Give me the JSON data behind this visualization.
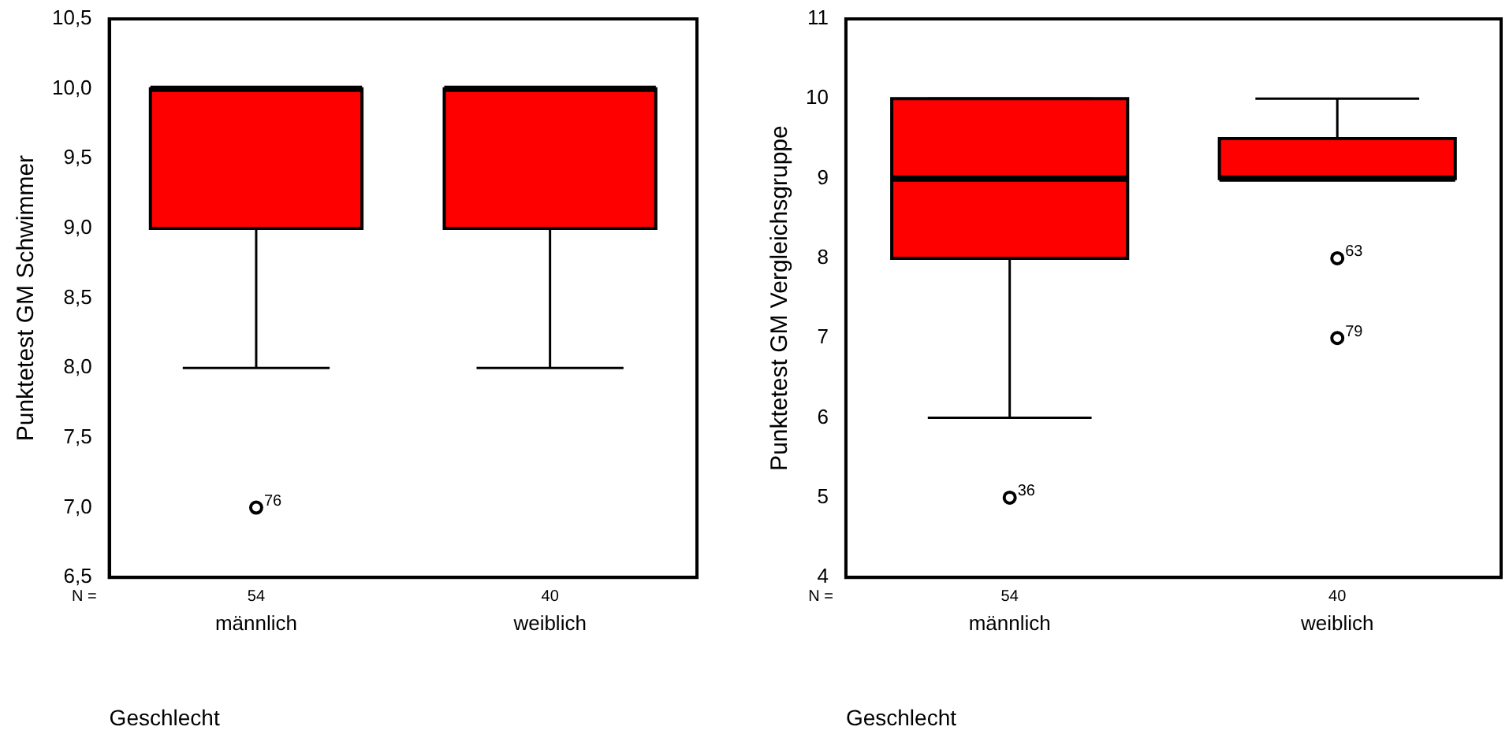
{
  "chart_data": [
    {
      "type": "box",
      "ylabel": "Punktetest GM Schwimmer",
      "xlabel": "Geschlecht",
      "categories": [
        "männlich",
        "weiblich"
      ],
      "series": [
        {
          "color": "#ff0000",
          "boxes": [
            {
              "low": 8,
              "q1": 9,
              "median": 10,
              "q3": 10,
              "high": 10,
              "outliers": [
                7
              ]
            },
            {
              "low": 8,
              "q1": 9,
              "median": 10,
              "q3": 10,
              "high": 10
            }
          ]
        }
      ],
      "ylim": [
        6.5,
        10.5
      ],
      "yticks": [
        {
          "value": 6.5,
          "label": "6,5"
        },
        {
          "value": 7,
          "label": "7,0"
        },
        {
          "value": 7.5,
          "label": "7,5"
        },
        {
          "value": 8,
          "label": "8,0"
        },
        {
          "value": 8.5,
          "label": "8,5"
        },
        {
          "value": 9,
          "label": "9,0"
        },
        {
          "value": 9.5,
          "label": "9,5"
        },
        {
          "value": 10,
          "label": "10,0"
        },
        {
          "value": 10.5,
          "label": "10,5"
        }
      ],
      "grid": false,
      "annotations": [
        "N =",
        "54",
        "40",
        "76"
      ]
    },
    {
      "type": "box",
      "ylabel": "Punktetest GM Vergleichsgruppe",
      "xlabel": "Geschlecht",
      "categories": [
        "männlich",
        "weiblich"
      ],
      "series": [
        {
          "color": "#ff0000",
          "boxes": [
            {
              "low": 6,
              "q1": 8,
              "median": 9,
              "q3": 10,
              "high": 10,
              "outliers": [
                5
              ]
            },
            {
              "low": 9,
              "q1": 9,
              "median": 9,
              "q3": 9.5,
              "high": 10,
              "outliers": [
                8,
                7
              ]
            }
          ]
        }
      ],
      "ylim": [
        4,
        11
      ],
      "yticks": [
        4,
        5,
        6,
        7,
        8,
        9,
        10,
        11
      ],
      "grid": false,
      "annotations": [
        "N =",
        "54",
        "40",
        "36",
        "63",
        "79"
      ]
    }
  ]
}
